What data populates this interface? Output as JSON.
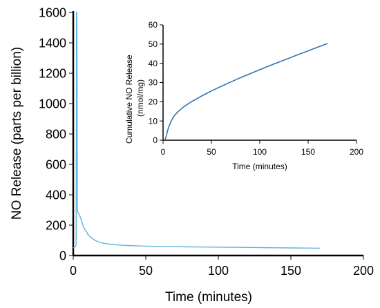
{
  "chart_data": [
    {
      "type": "line",
      "title": "",
      "xlabel": "Time (minutes)",
      "ylabel": "NO Release (parts per billion)",
      "xlim": [
        0,
        200
      ],
      "ylim": [
        0,
        1600
      ],
      "xticks": [
        0,
        50,
        100,
        150,
        200
      ],
      "yticks": [
        0,
        200,
        400,
        600,
        800,
        1000,
        1200,
        1400,
        1600
      ],
      "grid": false,
      "legend": "none",
      "series": [
        {
          "color": "#5fb4e0",
          "x": [
            0,
            1,
            1.5,
            2,
            2.3,
            2.5,
            2.8,
            3,
            4,
            5,
            6,
            7,
            8,
            9,
            10,
            12,
            15,
            18,
            20,
            25,
            30,
            35,
            40,
            50,
            60,
            70,
            80,
            90,
            100,
            110,
            120,
            130,
            140,
            150,
            160,
            170
          ],
          "y": [
            50,
            55,
            60,
            70,
            1600,
            1600,
            400,
            290,
            270,
            250,
            220,
            190,
            170,
            160,
            140,
            120,
            100,
            88,
            82,
            75,
            70,
            67,
            65,
            62,
            60,
            58,
            57,
            56,
            55,
            54,
            53,
            52,
            51,
            50,
            49,
            48
          ]
        }
      ]
    },
    {
      "type": "line",
      "title": "",
      "xlabel": "Time (minutes)",
      "ylabel": "Cumulative NO Release (nmol/mg)",
      "xlim": [
        0,
        200
      ],
      "ylim": [
        0,
        60
      ],
      "xticks": [
        0,
        50,
        100,
        150,
        200
      ],
      "yticks": [
        0,
        10,
        20,
        30,
        40,
        50,
        60
      ],
      "grid": false,
      "legend": "none",
      "series": [
        {
          "color": "#2e75b6",
          "x": [
            2,
            3,
            4,
            5,
            6,
            8,
            10,
            12,
            15,
            20,
            25,
            30,
            40,
            50,
            60,
            70,
            80,
            90,
            100,
            110,
            120,
            130,
            140,
            150,
            160,
            170
          ],
          "y": [
            0,
            1.5,
            3.5,
            5.5,
            7,
            9.5,
            11.5,
            13,
            14.6,
            16.8,
            18.6,
            20.2,
            23,
            25.6,
            28,
            30.3,
            32.5,
            34.6,
            36.7,
            38.7,
            40.7,
            42.6,
            44.6,
            46.5,
            48.4,
            50.3
          ]
        }
      ]
    }
  ]
}
